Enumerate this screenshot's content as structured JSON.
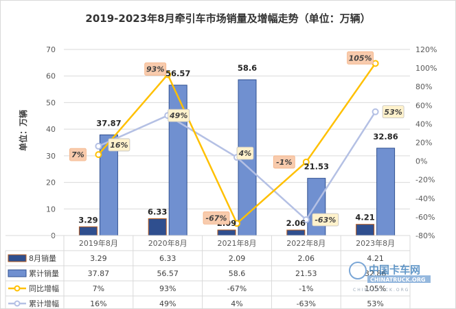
{
  "chart_data": {
    "type": "bar",
    "title": "2019-2023年8月牵引车市场销量及增幅走势（单位：万辆）",
    "ylabel": "单位：万辆",
    "categories": [
      "2019年8月",
      "2020年8月",
      "2021年8月",
      "2022年8月",
      "2023年8月"
    ],
    "ylim": [
      0,
      70
    ],
    "y_ticks": [
      "0",
      "10",
      "20",
      "30",
      "40",
      "50",
      "60",
      "70"
    ],
    "y2lim": [
      -80,
      120
    ],
    "y2_ticks": [
      "-80%",
      "-60%",
      "-40%",
      "-20%",
      "0%",
      "20%",
      "40%",
      "60%",
      "80%",
      "100%",
      "120%"
    ],
    "series": [
      {
        "name": "8月销量",
        "type": "bar",
        "color": "#2f4f8f",
        "values": [
          3.29,
          6.33,
          2.09,
          2.06,
          4.21
        ],
        "value_labels": [
          "3.29",
          "6.33",
          "2.09",
          "2.06",
          "4.21"
        ],
        "table": [
          "3.29",
          "6.33",
          "2.09",
          "2.06",
          "4.21"
        ]
      },
      {
        "name": "累计销量",
        "type": "bar",
        "color": "#7090d0",
        "values": [
          37.87,
          56.57,
          58.6,
          21.53,
          32.86
        ],
        "value_labels": [
          "37.87",
          "56.57",
          "58.6",
          "21.53",
          "32.86"
        ],
        "table": [
          "37.87",
          "56.57",
          "58.6",
          "21.53",
          "32.86"
        ]
      },
      {
        "name": "同比增幅",
        "type": "line",
        "axis": "right",
        "color": "#ffc000",
        "values": [
          7,
          93,
          -67,
          -1,
          105
        ],
        "value_labels": [
          "7%",
          "93%",
          "-67%",
          "-1%",
          "105%"
        ],
        "table": [
          "7%",
          "93%",
          "-67%",
          "-1%",
          "105%"
        ]
      },
      {
        "name": "累计增幅",
        "type": "line",
        "axis": "right",
        "color": "#b4c0e4",
        "values": [
          16,
          49,
          4,
          -63,
          53
        ],
        "value_labels": [
          "16%",
          "49%",
          "4%",
          "-63%",
          "53%"
        ],
        "table": [
          "16%",
          "49%",
          "4%",
          "-63%",
          "53%"
        ]
      }
    ],
    "legend_placement": "data-table-left",
    "grid": true
  },
  "colors": {
    "yoy_label_bg": "#f8cbad",
    "cum_label_bg": "#fff2cc",
    "grid": "#d9d9d9"
  },
  "watermark": {
    "cn": "中国卡车网",
    "en": "CHINATRUCK.ORG",
    "sub": "CHINATRUCK.ORG"
  }
}
